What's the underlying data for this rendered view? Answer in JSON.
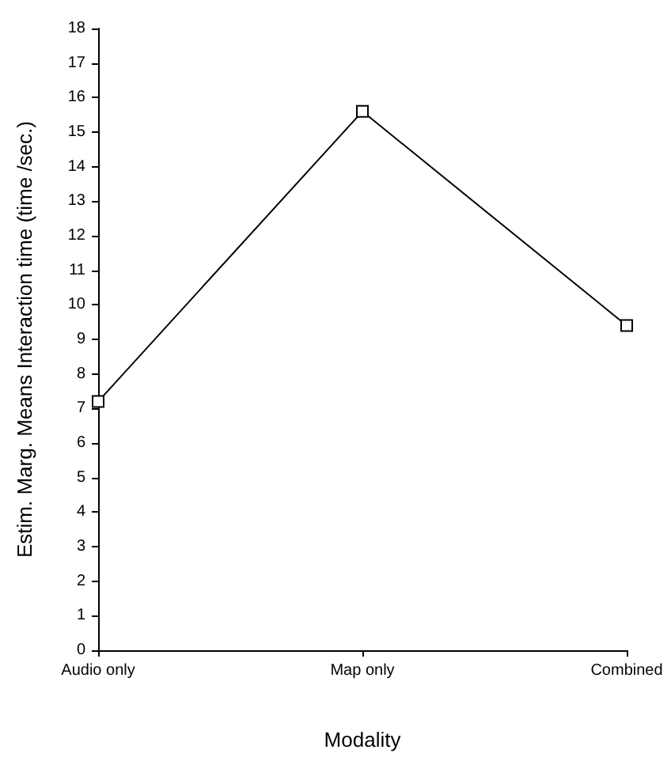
{
  "chart_data": {
    "type": "line",
    "xlabel": "Modality",
    "ylabel": "Estim. Marg. Means Interaction time (time /sec.)",
    "categories": [
      "Audio only",
      "Map only",
      "Combined"
    ],
    "series": [
      {
        "color": "#000000",
        "values": [
          7.2,
          15.6,
          9.4
        ]
      }
    ],
    "ylim": [
      0,
      18
    ],
    "yticks": [
      0,
      1,
      2,
      3,
      4,
      5,
      6,
      7,
      8,
      9,
      10,
      11,
      12,
      13,
      14,
      15,
      16,
      17,
      18
    ],
    "grid": false,
    "marker": "square",
    "line_style": "solid"
  }
}
